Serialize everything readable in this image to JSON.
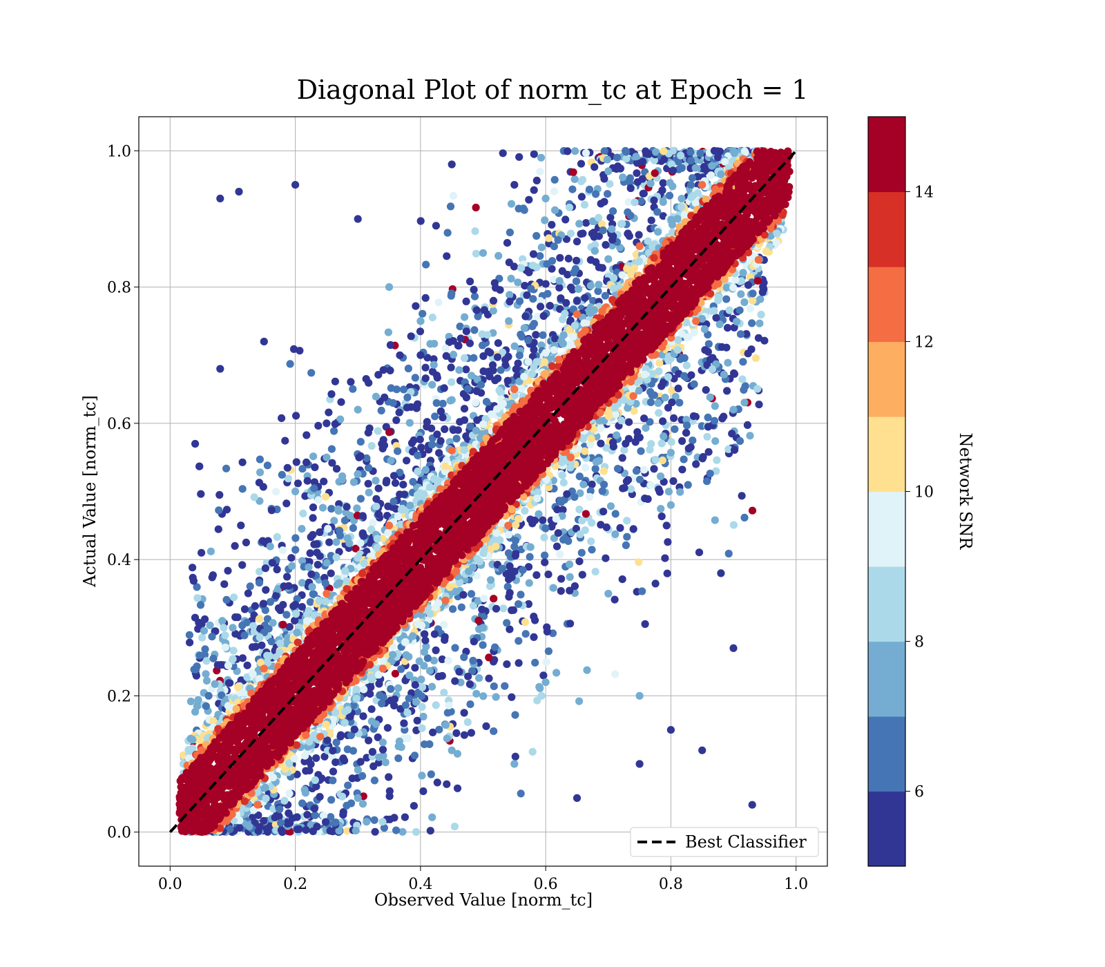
{
  "chart_data": {
    "type": "scatter",
    "title": "Diagonal Plot of norm_tc at Epoch = 1",
    "xlabel": "Observed Value [norm_tc]",
    "ylabel": "Actual Value [norm_tc]",
    "xlim": [
      -0.05,
      1.05
    ],
    "ylim": [
      -0.05,
      1.05
    ],
    "x_ticks": [
      "0.0",
      "0.2",
      "0.4",
      "0.6",
      "0.8",
      "1.0"
    ],
    "y_ticks": [
      "0.0",
      "0.2",
      "0.4",
      "0.6",
      "0.8",
      "1.0"
    ],
    "x_tick_values": [
      0.0,
      0.2,
      0.4,
      0.6,
      0.8,
      1.0
    ],
    "y_tick_values": [
      0.0,
      0.2,
      0.4,
      0.6,
      0.8,
      1.0
    ],
    "grid": true,
    "legend": {
      "placement": "lower-right",
      "entries": [
        "Best Classifier"
      ]
    },
    "reference_line": {
      "name": "Best Classifier",
      "style": "dashed",
      "color": "#000000",
      "x": [
        0,
        1
      ],
      "y": [
        0,
        1
      ]
    },
    "colorbar": {
      "label": "Network SNR",
      "range": [
        5,
        15
      ],
      "ticks": [
        "6",
        "8",
        "10",
        "12",
        "14"
      ],
      "tick_values": [
        6,
        8,
        10,
        12,
        14
      ],
      "colors": [
        "#313695",
        "#4575b4",
        "#74add1",
        "#abd9e9",
        "#e0f3f8",
        "#fee090",
        "#fdae61",
        "#f46d43",
        "#d73027",
        "#a50026"
      ]
    },
    "series": [
      {
        "snr_band": "high",
        "color": "#a50026",
        "points": [
          [
            0.02,
            0.01
          ],
          [
            0.05,
            0.05
          ],
          [
            0.08,
            0.07
          ],
          [
            0.1,
            0.12
          ],
          [
            0.12,
            0.1
          ],
          [
            0.15,
            0.16
          ],
          [
            0.18,
            0.15
          ],
          [
            0.2,
            0.22
          ],
          [
            0.22,
            0.19
          ],
          [
            0.25,
            0.27
          ],
          [
            0.28,
            0.25
          ],
          [
            0.3,
            0.31
          ],
          [
            0.32,
            0.29
          ],
          [
            0.35,
            0.36
          ],
          [
            0.38,
            0.35
          ],
          [
            0.4,
            0.41
          ],
          [
            0.42,
            0.39
          ],
          [
            0.45,
            0.46
          ],
          [
            0.48,
            0.45
          ],
          [
            0.5,
            0.52
          ],
          [
            0.52,
            0.49
          ],
          [
            0.55,
            0.56
          ],
          [
            0.58,
            0.55
          ],
          [
            0.6,
            0.61
          ],
          [
            0.62,
            0.59
          ],
          [
            0.65,
            0.66
          ],
          [
            0.68,
            0.65
          ],
          [
            0.7,
            0.72
          ],
          [
            0.72,
            0.69
          ],
          [
            0.75,
            0.76
          ],
          [
            0.78,
            0.75
          ],
          [
            0.8,
            0.81
          ],
          [
            0.82,
            0.79
          ],
          [
            0.85,
            0.86
          ],
          [
            0.88,
            0.85
          ],
          [
            0.9,
            0.91
          ],
          [
            0.92,
            0.89
          ],
          [
            0.95,
            0.96
          ],
          [
            0.97,
            0.94
          ],
          [
            0.98,
            0.99
          ]
        ]
      },
      {
        "snr_band": "medium",
        "color": "#f46d43",
        "points": [
          [
            0.05,
            0.12
          ],
          [
            0.15,
            0.24
          ],
          [
            0.25,
            0.35
          ],
          [
            0.35,
            0.45
          ],
          [
            0.45,
            0.56
          ],
          [
            0.55,
            0.65
          ],
          [
            0.65,
            0.76
          ],
          [
            0.75,
            0.86
          ],
          [
            0.85,
            0.95
          ],
          [
            0.14,
            0.04
          ],
          [
            0.24,
            0.14
          ],
          [
            0.34,
            0.24
          ],
          [
            0.44,
            0.34
          ],
          [
            0.54,
            0.45
          ],
          [
            0.64,
            0.55
          ],
          [
            0.74,
            0.64
          ],
          [
            0.84,
            0.75
          ],
          [
            0.94,
            0.84
          ]
        ]
      },
      {
        "snr_band": "low",
        "color": "#74add1",
        "points": [
          [
            0.1,
            0.3
          ],
          [
            0.2,
            0.5
          ],
          [
            0.3,
            0.62
          ],
          [
            0.4,
            0.75
          ],
          [
            0.5,
            0.85
          ],
          [
            0.6,
            0.93
          ],
          [
            0.7,
            0.97
          ],
          [
            0.3,
            0.05
          ],
          [
            0.45,
            0.12
          ],
          [
            0.6,
            0.22
          ],
          [
            0.7,
            0.35
          ],
          [
            0.8,
            0.48
          ],
          [
            0.9,
            0.62
          ],
          [
            0.5,
            0.3
          ],
          [
            0.35,
            0.8
          ],
          [
            0.55,
            0.1
          ],
          [
            0.25,
            0.55
          ],
          [
            0.75,
            0.2
          ]
        ]
      },
      {
        "snr_band": "lowest",
        "color": "#313695",
        "points": [
          [
            0.08,
            0.93
          ],
          [
            0.11,
            0.94
          ],
          [
            0.04,
            0.57
          ],
          [
            0.05,
            0.41
          ],
          [
            0.08,
            0.68
          ],
          [
            0.2,
            0.95
          ],
          [
            0.3,
            0.9
          ],
          [
            0.45,
            0.98
          ],
          [
            0.55,
            0.95
          ],
          [
            0.15,
            0.72
          ],
          [
            0.25,
            0.6
          ],
          [
            0.4,
            0.7
          ],
          [
            0.65,
            0.05
          ],
          [
            0.75,
            0.1
          ],
          [
            0.85,
            0.12
          ],
          [
            0.93,
            0.04
          ],
          [
            0.9,
            0.27
          ],
          [
            0.88,
            0.38
          ],
          [
            0.84,
            0.54
          ],
          [
            0.8,
            0.15
          ]
        ]
      }
    ]
  }
}
